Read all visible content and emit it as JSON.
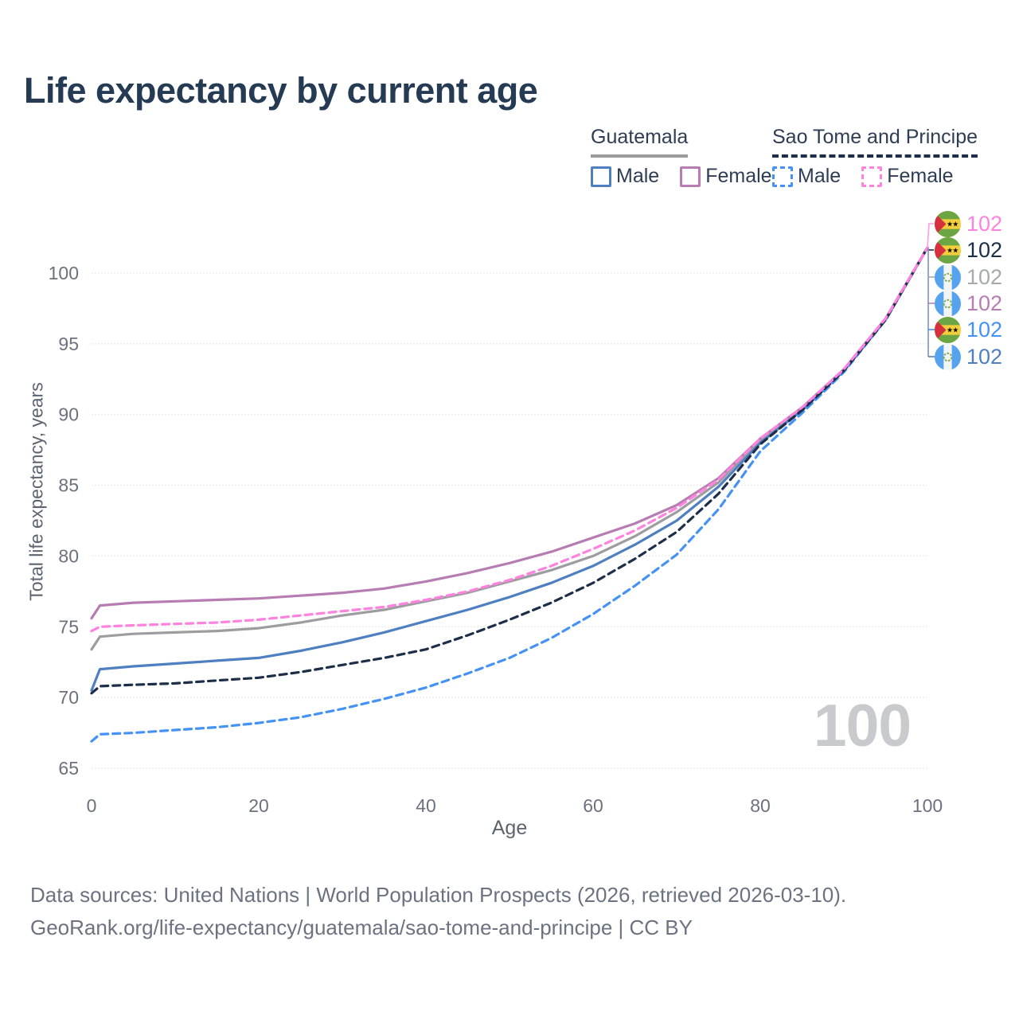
{
  "title": "Life expectancy by current age",
  "legend": {
    "groups": [
      {
        "name": "Guatemala",
        "line_style": "solid",
        "underline_color": "#9b9b9b",
        "items": [
          {
            "label": "Male",
            "color": "#4e7fc0",
            "dash": false
          },
          {
            "label": "Female",
            "color": "#b77db2",
            "dash": false
          }
        ]
      },
      {
        "name": "Sao Tome and Principe",
        "line_style": "dashed",
        "underline_color": "#1d2e49",
        "items": [
          {
            "label": "Male",
            "color": "#4592f5",
            "dash": true
          },
          {
            "label": "Female",
            "color": "#ff82df",
            "dash": true
          }
        ]
      }
    ]
  },
  "chart_data": {
    "type": "line",
    "title": "Life expectancy by current age",
    "xlabel": "Age",
    "ylabel": "Total life expectancy, years",
    "xlim": [
      0,
      100
    ],
    "ylim": [
      63.5,
      103
    ],
    "x_ticks": [
      0,
      20,
      40,
      60,
      80,
      100
    ],
    "y_ticks": [
      65,
      70,
      75,
      80,
      85,
      90,
      95,
      100
    ],
    "grid": true,
    "legend_position": "top-right",
    "x": [
      0,
      1,
      5,
      10,
      15,
      20,
      25,
      30,
      35,
      40,
      45,
      50,
      55,
      60,
      65,
      70,
      75,
      80,
      85,
      90,
      95,
      100
    ],
    "series": [
      {
        "id": "guatemala-total",
        "name": "Guatemala (both sexes)",
        "country": "Guatemala",
        "sex": "total",
        "color": "#9d9da1",
        "dash": false,
        "values": [
          73.4,
          74.3,
          74.5,
          74.6,
          74.7,
          74.9,
          75.3,
          75.8,
          76.2,
          76.8,
          77.4,
          78.2,
          79.0,
          80.0,
          81.4,
          83.1,
          85.2,
          88.2,
          90.4,
          93.1,
          96.7,
          101.8
        ],
        "end_value": 102
      },
      {
        "id": "guatemala-female",
        "name": "Guatemala Female",
        "country": "Guatemala",
        "sex": "female",
        "color": "#b77db2",
        "dash": false,
        "values": [
          75.6,
          76.5,
          76.7,
          76.8,
          76.9,
          77.0,
          77.2,
          77.4,
          77.7,
          78.2,
          78.8,
          79.5,
          80.3,
          81.3,
          82.3,
          83.6,
          85.5,
          88.3,
          90.5,
          93.2,
          96.8,
          101.8
        ],
        "end_value": 102
      },
      {
        "id": "guatemala-male",
        "name": "Guatemala Male",
        "country": "Guatemala",
        "sex": "male",
        "color": "#4e7fc0",
        "dash": false,
        "values": [
          70.5,
          72.0,
          72.2,
          72.4,
          72.6,
          72.8,
          73.3,
          73.9,
          74.6,
          75.4,
          76.2,
          77.1,
          78.1,
          79.3,
          80.8,
          82.5,
          84.9,
          88.0,
          90.3,
          93.1,
          96.7,
          101.8
        ],
        "end_value": 102
      },
      {
        "id": "sao-tome-male",
        "name": "Sao Tome and Principe Male",
        "country": "Sao Tome and Principe",
        "sex": "male",
        "color": "#4592f5",
        "dash": true,
        "values": [
          66.9,
          67.4,
          67.5,
          67.7,
          67.9,
          68.2,
          68.6,
          69.2,
          69.9,
          70.7,
          71.7,
          72.8,
          74.2,
          75.9,
          77.9,
          80.1,
          83.3,
          87.4,
          90.1,
          93.0,
          96.7,
          101.8
        ],
        "end_value": 102
      },
      {
        "id": "sao-tome-total",
        "name": "Sao Tome and Principe (both sexes)",
        "country": "Sao Tome and Principe",
        "sex": "total",
        "color": "#1d2e49",
        "dash": true,
        "values": [
          70.3,
          70.8,
          70.9,
          71.0,
          71.2,
          71.4,
          71.8,
          72.3,
          72.8,
          73.4,
          74.4,
          75.5,
          76.7,
          78.1,
          79.8,
          81.7,
          84.4,
          87.9,
          90.3,
          93.1,
          96.7,
          101.8
        ],
        "end_value": 102
      },
      {
        "id": "sao-tome-female",
        "name": "Sao Tome and Principe Female",
        "country": "Sao Tome and Principe",
        "sex": "female",
        "color": "#ff82df",
        "dash": true,
        "values": [
          74.7,
          75.0,
          75.1,
          75.2,
          75.3,
          75.5,
          75.8,
          76.1,
          76.4,
          76.9,
          77.5,
          78.3,
          79.3,
          80.5,
          81.8,
          83.4,
          85.4,
          88.3,
          90.5,
          93.2,
          96.8,
          101.8
        ],
        "end_value": 102
      }
    ]
  },
  "end_labels": [
    {
      "flag": "sao-tome-and-principe",
      "value": "102",
      "color": "#ff82df"
    },
    {
      "flag": "sao-tome-and-principe",
      "value": "102",
      "color": "#1d2e49"
    },
    {
      "flag": "guatemala",
      "value": "102",
      "color": "#a7a9ae"
    },
    {
      "flag": "guatemala",
      "value": "102",
      "color": "#b77db2"
    },
    {
      "flag": "sao-tome-and-principe",
      "value": "102",
      "color": "#4592f5"
    },
    {
      "flag": "guatemala",
      "value": "102",
      "color": "#4e7fc0"
    }
  ],
  "watermark": "100",
  "footer": {
    "line1": "Data sources: United Nations | World Population Prospects (2026, retrieved 2026-03-10).",
    "line2": "GeoRank.org/life-expectancy/guatemala/sao-tome-and-principe | CC BY"
  }
}
